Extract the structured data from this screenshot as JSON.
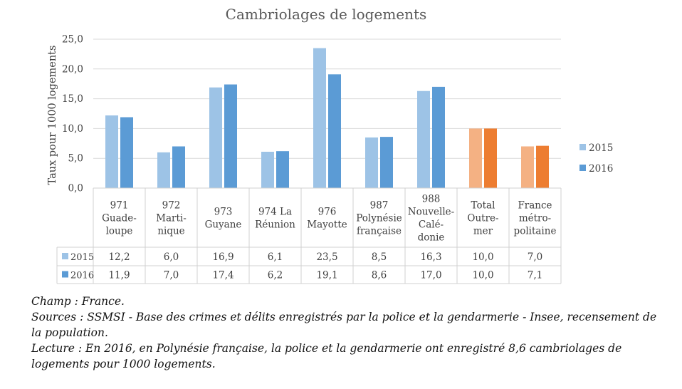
{
  "chart_data": {
    "type": "bar",
    "title": "Cambriolages de logements",
    "ylabel": "Taux pour 1000 logements",
    "xlabel": "",
    "ylim": [
      0,
      25
    ],
    "yticks": [
      "0,0",
      "5,0",
      "10,0",
      "15,0",
      "20,0",
      "25,0"
    ],
    "ytick_values": [
      0,
      5,
      10,
      15,
      20,
      25
    ],
    "grid": true,
    "legend_position": "right",
    "categories": [
      [
        "971",
        "Guade-",
        "loupe"
      ],
      [
        "972",
        "Marti-",
        "nique"
      ],
      [
        "973",
        "Guyane"
      ],
      [
        "974 La",
        "Réunion"
      ],
      [
        "976",
        "Mayotte"
      ],
      [
        "987",
        "Polynésie",
        "française"
      ],
      [
        "988",
        "Nouvelle-",
        "Calé-",
        "donie"
      ],
      [
        "Total",
        "Outre-",
        "mer"
      ],
      [
        "France",
        "métro-",
        "politaine"
      ]
    ],
    "series": [
      {
        "name": "2015",
        "values": [
          12.2,
          6.0,
          16.9,
          6.1,
          23.5,
          8.5,
          16.3,
          10.0,
          7.0
        ],
        "labels": [
          "12,2",
          "6,0",
          "16,9",
          "6,1",
          "23,5",
          "8,5",
          "16,3",
          "10,0",
          "7,0"
        ],
        "color": "#9DC3E6",
        "highlight_color": "#F4B183"
      },
      {
        "name": "2016",
        "values": [
          11.9,
          7.0,
          17.4,
          6.2,
          19.1,
          8.6,
          17.0,
          10.0,
          7.1
        ],
        "labels": [
          "11,9",
          "7,0",
          "17,4",
          "6,2",
          "19,1",
          "8,6",
          "17,0",
          "10,0",
          "7,1"
        ],
        "color": "#5B9BD5",
        "highlight_color": "#ED7D31"
      }
    ],
    "highlighted_categories": [
      7,
      8
    ]
  },
  "notes": {
    "champ": "Champ : France.",
    "sources": "Sources  : SSMSI - Base des crimes et délits enregistrés par la police et la gendarmerie - Insee, recensement de la population.",
    "lecture": "Lecture : En 2016, en Polynésie française, la police et la gendarmerie ont enregistré 8,6 cambriolages de logements pour 1000 logements."
  }
}
